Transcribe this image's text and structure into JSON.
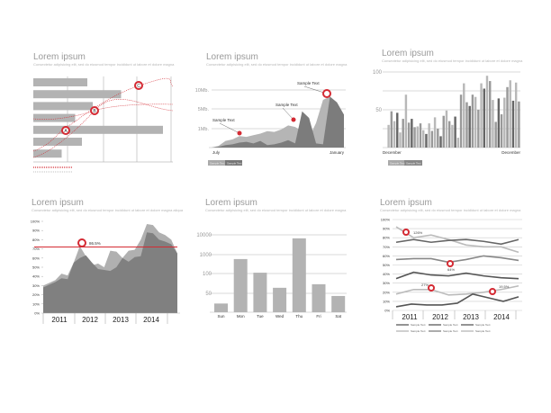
{
  "panels": [
    {
      "title": "Lorem ipsum",
      "subtitle": "Consectetur adipisicing elit, sed do eiusmod tempor incididunt ut labore et dolore magna"
    },
    {
      "title": "Lorem ipsum",
      "subtitle": "Consectetur adipisicing elit, sed do eiusmod tempor incididunt ut labore et dolore magna"
    },
    {
      "title": "Lorem ipsum",
      "subtitle": "Consectetur adipisicing elit, sed do eiusmod tempor incididunt ut labore et dolore magna"
    },
    {
      "title": "Lorem ipsum",
      "subtitle": "Consectetur adipisicing elit, sed do eiusmod tempor incididunt ut labore et dolore magna aliqua"
    },
    {
      "title": "Lorem ipsum",
      "subtitle": "Consectetur adipisicing elit, sed do eiusmod tempor incididunt ut labore et dolore magna"
    },
    {
      "title": "Lorem ipsum",
      "subtitle": "Consectetur adipisicing elit, sed do eiusmod tempor incididunt ut labore et dolore magna"
    }
  ],
  "colors": {
    "accent": "#d42a33",
    "bar": "#b3b3b3",
    "dark": "#7a7a7a",
    "grid": "#c8c8c8"
  },
  "chart_data": [
    {
      "type": "bar",
      "orientation": "horizontal",
      "values": [
        40,
        65,
        44,
        31,
        96,
        36,
        21
      ],
      "xlim": [
        0,
        100
      ],
      "markers": [
        "A",
        "B",
        "C"
      ]
    },
    {
      "type": "area",
      "x_labels": [
        "July",
        "January"
      ],
      "yticks": [
        "10Mb.",
        "5Mb.",
        "1Mb."
      ],
      "series": [
        {
          "name": "Sample Text",
          "values": [
            0,
            2,
            8,
            10,
            14,
            13,
            15,
            17,
            20,
            19,
            22,
            27,
            25,
            20,
            12,
            30,
            58,
            62,
            50,
            40
          ]
        },
        {
          "name": "Sample Text",
          "values": [
            0,
            1,
            3,
            4,
            6,
            7,
            5,
            8,
            3,
            4,
            6,
            9,
            5,
            44,
            36,
            5,
            4,
            62,
            55,
            40
          ]
        }
      ],
      "annotations": [
        "Sample Text",
        "Sample Text",
        "Sample Text"
      ],
      "legend": [
        "Sample Text",
        "Sample Text"
      ]
    },
    {
      "type": "bar",
      "ylim": [
        0,
        100
      ],
      "yticks": [
        "100",
        "50"
      ],
      "x_labels": [
        "December",
        "December"
      ],
      "values": [
        30,
        48,
        35,
        46,
        20,
        38,
        70,
        33,
        38,
        27,
        28,
        32,
        23,
        18,
        32,
        22,
        40,
        25,
        15,
        42,
        49,
        35,
        30,
        41,
        13,
        70,
        85,
        60,
        55,
        70,
        67,
        50,
        85,
        78,
        95,
        88,
        63,
        34,
        65,
        44,
        66,
        80,
        89,
        62,
        86,
        61
      ],
      "legend": [
        "Sample Text",
        "Sample Text"
      ]
    },
    {
      "type": "area",
      "ylim": [
        0,
        100
      ],
      "yticks": [
        "0%",
        "10%",
        "20%",
        "30%",
        "40%",
        "50%",
        "60%",
        "70%",
        "80%",
        "90%",
        "100%"
      ],
      "x_labels": [
        "2011",
        "2012",
        "2013",
        "2014"
      ],
      "reference_line": 72,
      "annotation": "86.5%",
      "series": [
        {
          "name": "back",
          "values": [
            30,
            33,
            36,
            43,
            41,
            55,
            73,
            62,
            52,
            54,
            50,
            68,
            67,
            60,
            68,
            69,
            80,
            97,
            96,
            88,
            85,
            80,
            65
          ]
        },
        {
          "name": "front",
          "values": [
            28,
            31,
            34,
            38,
            37,
            55,
            60,
            63,
            55,
            48,
            47,
            46,
            50,
            60,
            56,
            61,
            62,
            88,
            87,
            80,
            78,
            75,
            65
          ]
        }
      ]
    },
    {
      "type": "bar",
      "categories": [
        "Sun",
        "Mon",
        "Tue",
        "Wed",
        "Thu",
        "Fri",
        "Sat"
      ],
      "values": [
        23,
        790,
        140,
        64,
        8400,
        73,
        43
      ],
      "yticks": [
        50,
        100,
        1000,
        10000
      ]
    },
    {
      "type": "line",
      "ylim": [
        0,
        100
      ],
      "yticks": [
        "0%",
        "10%",
        "20%",
        "30%",
        "40%",
        "50%",
        "60%",
        "70%",
        "80%",
        "90%",
        "100%"
      ],
      "x_labels": [
        "2011",
        "2012",
        "2013",
        "2014"
      ],
      "annotations": [
        "126%",
        "64%",
        "27%",
        "19.5%"
      ],
      "series": [
        {
          "name": "Sample Text",
          "values": [
            92,
            80,
            83,
            78,
            72,
            70,
            70,
            64
          ]
        },
        {
          "name": "Sample Text",
          "values": [
            75,
            78,
            75,
            77,
            78,
            76,
            73,
            78
          ]
        },
        {
          "name": "Sample Text",
          "values": [
            56,
            57,
            57,
            53,
            56,
            60,
            58,
            55
          ]
        },
        {
          "name": "Sample Text",
          "values": [
            35,
            42,
            39,
            38,
            41,
            38,
            36,
            35
          ]
        },
        {
          "name": "Sample Text",
          "values": [
            18,
            23,
            23,
            17,
            18,
            20,
            23,
            27
          ]
        },
        {
          "name": "Sample Text",
          "values": [
            4,
            7,
            6,
            6,
            8,
            18,
            14,
            10,
            15
          ]
        }
      ],
      "legend": [
        "Sample Text",
        "Sample Text",
        "Sample Text",
        "Sample Text",
        "Sample Text",
        "Sample Text"
      ]
    }
  ]
}
